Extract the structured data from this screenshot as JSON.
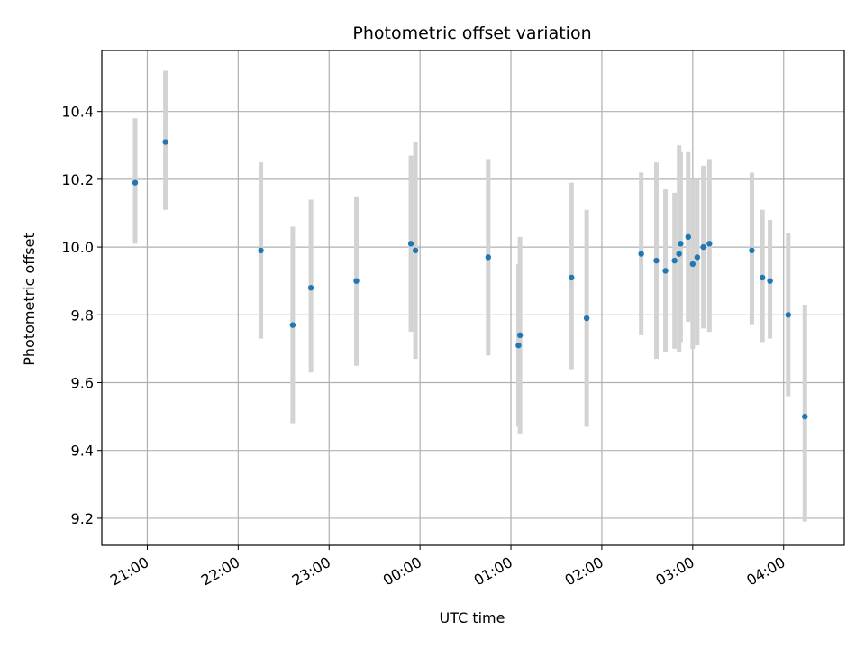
{
  "chart_data": {
    "type": "scatter",
    "title": "Photometric offset variation",
    "xlabel": "UTC time",
    "ylabel": "Photometric offset",
    "x_axis_kind": "time",
    "xlim": [
      "2023-01-01T20:30",
      "2023-01-02T04:40"
    ],
    "ylim": [
      9.12,
      10.58
    ],
    "x_ticks": [
      {
        "t": "2023-01-01T21:00",
        "label": "21:00"
      },
      {
        "t": "2023-01-01T22:00",
        "label": "22:00"
      },
      {
        "t": "2023-01-01T23:00",
        "label": "23:00"
      },
      {
        "t": "2023-01-02T00:00",
        "label": "00:00"
      },
      {
        "t": "2023-01-02T01:00",
        "label": "01:00"
      },
      {
        "t": "2023-01-02T02:00",
        "label": "02:00"
      },
      {
        "t": "2023-01-02T03:00",
        "label": "03:00"
      },
      {
        "t": "2023-01-02T04:00",
        "label": "04:00"
      }
    ],
    "y_ticks": [
      {
        "value": 9.2,
        "label": "9.2"
      },
      {
        "value": 9.4,
        "label": "9.4"
      },
      {
        "value": 9.6,
        "label": "9.6"
      },
      {
        "value": 9.8,
        "label": "9.8"
      },
      {
        "value": 10.0,
        "label": "10.0"
      },
      {
        "value": 10.2,
        "label": "10.2"
      },
      {
        "value": 10.4,
        "label": "10.4"
      }
    ],
    "grid": true,
    "point_color": "#1f77b4",
    "errorbar_color": "#d3d3d3",
    "points": [
      {
        "t": "2023-01-01T20:52",
        "y": 10.19,
        "err_low": 10.01,
        "err_high": 10.38
      },
      {
        "t": "2023-01-01T21:12",
        "y": 10.31,
        "err_low": 10.11,
        "err_high": 10.52
      },
      {
        "t": "2023-01-01T22:15",
        "y": 9.99,
        "err_low": 9.73,
        "err_high": 10.25
      },
      {
        "t": "2023-01-01T22:36",
        "y": 9.77,
        "err_low": 9.48,
        "err_high": 10.06
      },
      {
        "t": "2023-01-01T22:48",
        "y": 9.88,
        "err_low": 9.63,
        "err_high": 10.14
      },
      {
        "t": "2023-01-01T23:18",
        "y": 9.9,
        "err_low": 9.65,
        "err_high": 10.15
      },
      {
        "t": "2023-01-01T23:54",
        "y": 10.01,
        "err_low": 9.75,
        "err_high": 10.27
      },
      {
        "t": "2023-01-01T23:57",
        "y": 9.99,
        "err_low": 9.67,
        "err_high": 10.31
      },
      {
        "t": "2023-01-02T00:45",
        "y": 9.97,
        "err_low": 9.68,
        "err_high": 10.26
      },
      {
        "t": "2023-01-02T01:05",
        "y": 9.71,
        "err_low": 9.47,
        "err_high": 9.95
      },
      {
        "t": "2023-01-02T01:06",
        "y": 9.74,
        "err_low": 9.45,
        "err_high": 10.03
      },
      {
        "t": "2023-01-02T01:40",
        "y": 9.91,
        "err_low": 9.64,
        "err_high": 10.19
      },
      {
        "t": "2023-01-02T01:50",
        "y": 9.79,
        "err_low": 9.47,
        "err_high": 10.11
      },
      {
        "t": "2023-01-02T02:26",
        "y": 9.98,
        "err_low": 9.74,
        "err_high": 10.22
      },
      {
        "t": "2023-01-02T02:36",
        "y": 9.96,
        "err_low": 9.67,
        "err_high": 10.25
      },
      {
        "t": "2023-01-02T02:42",
        "y": 9.93,
        "err_low": 9.69,
        "err_high": 10.17
      },
      {
        "t": "2023-01-02T02:48",
        "y": 9.96,
        "err_low": 9.7,
        "err_high": 10.16
      },
      {
        "t": "2023-01-02T02:51",
        "y": 9.98,
        "err_low": 9.69,
        "err_high": 10.3
      },
      {
        "t": "2023-01-02T02:52",
        "y": 10.01,
        "err_low": 9.72,
        "err_high": 10.28
      },
      {
        "t": "2023-01-02T02:57",
        "y": 10.03,
        "err_low": 9.78,
        "err_high": 10.28
      },
      {
        "t": "2023-01-02T03:00",
        "y": 9.95,
        "err_low": 9.7,
        "err_high": 10.2
      },
      {
        "t": "2023-01-02T03:03",
        "y": 9.97,
        "err_low": 9.71,
        "err_high": 10.2
      },
      {
        "t": "2023-01-02T03:07",
        "y": 10.0,
        "err_low": 9.76,
        "err_high": 10.24
      },
      {
        "t": "2023-01-02T03:11",
        "y": 10.01,
        "err_low": 9.75,
        "err_high": 10.26
      },
      {
        "t": "2023-01-02T03:39",
        "y": 9.99,
        "err_low": 9.77,
        "err_high": 10.22
      },
      {
        "t": "2023-01-02T03:46",
        "y": 9.91,
        "err_low": 9.72,
        "err_high": 10.11
      },
      {
        "t": "2023-01-02T03:51",
        "y": 9.9,
        "err_low": 9.73,
        "err_high": 10.08
      },
      {
        "t": "2023-01-02T04:03",
        "y": 9.8,
        "err_low": 9.56,
        "err_high": 10.04
      },
      {
        "t": "2023-01-02T04:14",
        "y": 9.5,
        "err_low": 9.19,
        "err_high": 9.83
      }
    ]
  }
}
